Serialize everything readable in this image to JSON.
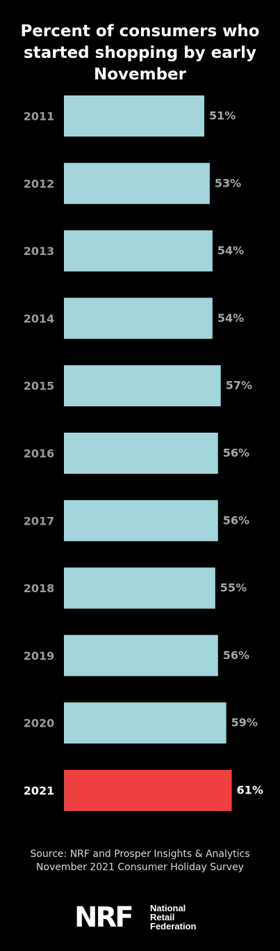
{
  "chart_data": {
    "type": "bar",
    "orientation": "horizontal",
    "title": "Percent of consumers who started shopping by early November",
    "categories": [
      "2011",
      "2012",
      "2013",
      "2014",
      "2015",
      "2016",
      "2017",
      "2018",
      "2019",
      "2020",
      "2021"
    ],
    "values": [
      51,
      53,
      54,
      54,
      57,
      56,
      56,
      55,
      56,
      59,
      61
    ],
    "value_labels": [
      "51%",
      "53%",
      "54%",
      "54%",
      "57%",
      "56%",
      "56%",
      "55%",
      "56%",
      "59%",
      "61%"
    ],
    "unit": "%",
    "highlight_category": "2021",
    "grid": false,
    "legend": "none",
    "colors": {
      "bar": "#a3d5da",
      "highlight": "#f04141",
      "category_label": "#9b9b9b",
      "value_label": "#a8a8a8",
      "highlight_label": "#ffffff",
      "background": "#000000"
    }
  },
  "source": "Source: NRF and Prosper Insights & Analytics November 2021 Consumer Holiday Survey",
  "logo": {
    "mark": "NRF",
    "lines": [
      "National",
      "Retail",
      "Federation"
    ]
  }
}
